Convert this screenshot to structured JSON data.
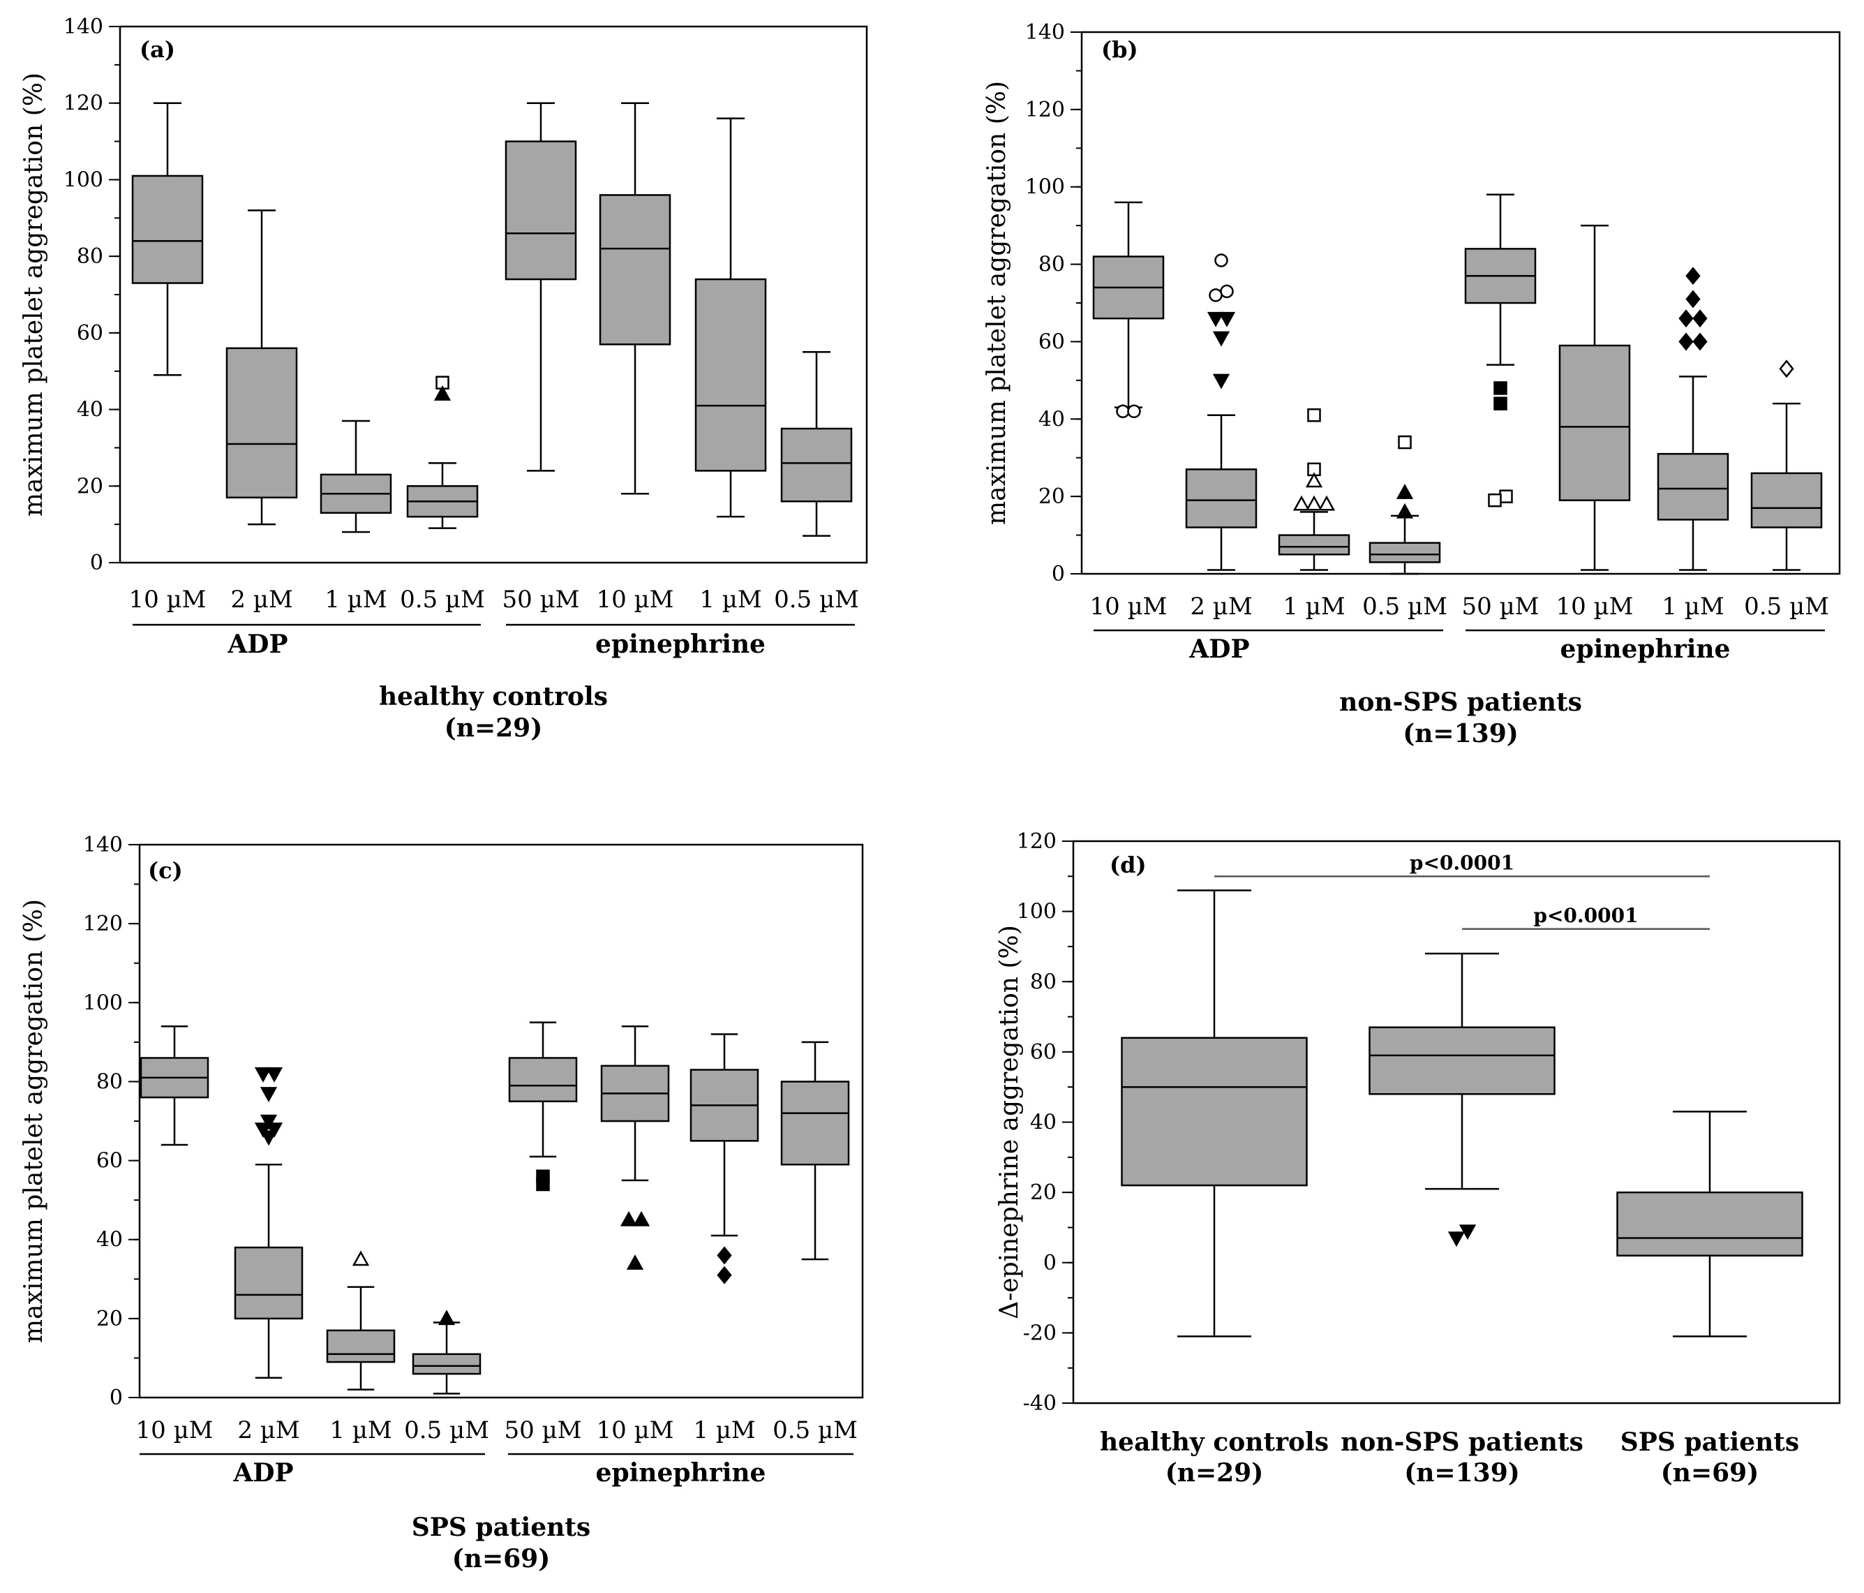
{
  "colors": {
    "box_fill": "#a6a6a6",
    "stroke": "#000000",
    "bracket": "#555555"
  },
  "chart_data": [
    {
      "id": "a",
      "type": "box",
      "panel_label": "(a)",
      "ylabel": "maximum platelet aggregation (%)",
      "ylim": [
        0,
        140
      ],
      "ymajor": [
        0,
        20,
        40,
        60,
        80,
        100,
        120,
        140
      ],
      "yminor_step": 10,
      "categories": [
        "10 µM",
        "2 µM",
        "1 µM",
        "0.5 µM",
        "50 µM",
        "10 µM",
        "1 µM",
        "0.5 µM"
      ],
      "groups": [
        {
          "label": "ADP",
          "start": 0,
          "end": 3
        },
        {
          "label": "epinephrine",
          "start": 4,
          "end": 7
        }
      ],
      "caption": [
        "healthy controls",
        "(n=29)"
      ],
      "boxes": [
        {
          "min": 49,
          "q1": 73,
          "median": 84,
          "q3": 101,
          "max": 120,
          "outliers": []
        },
        {
          "min": 10,
          "q1": 17,
          "median": 31,
          "q3": 56,
          "max": 92,
          "outliers": []
        },
        {
          "min": 8,
          "q1": 13,
          "median": 18,
          "q3": 23,
          "max": 37,
          "outliers": []
        },
        {
          "min": 9,
          "q1": 12,
          "median": 16,
          "q3": 20,
          "max": 26,
          "outliers": [
            {
              "y": 47,
              "marker": "square-open"
            },
            {
              "y": 44,
              "marker": "triangle-up"
            }
          ]
        },
        {
          "min": 24,
          "q1": 74,
          "median": 86,
          "q3": 110,
          "max": 120,
          "outliers": []
        },
        {
          "min": 18,
          "q1": 57,
          "median": 82,
          "q3": 96,
          "max": 120,
          "outliers": []
        },
        {
          "min": 12,
          "q1": 24,
          "median": 41,
          "q3": 74,
          "max": 116,
          "outliers": []
        },
        {
          "min": 7,
          "q1": 16,
          "median": 26,
          "q3": 35,
          "max": 55,
          "outliers": []
        }
      ]
    },
    {
      "id": "b",
      "type": "box",
      "panel_label": "(b)",
      "ylabel": "maximum platelet aggregation (%)",
      "ylim": [
        0,
        140
      ],
      "ymajor": [
        0,
        20,
        40,
        60,
        80,
        100,
        120,
        140
      ],
      "yminor_step": 10,
      "categories": [
        "10 µM",
        "2 µM",
        "1 µM",
        "0.5 µM",
        "50 µM",
        "10 µM",
        "1 µM",
        "0.5 µM"
      ],
      "groups": [
        {
          "label": "ADP",
          "start": 0,
          "end": 3
        },
        {
          "label": "epinephrine",
          "start": 4,
          "end": 7
        }
      ],
      "caption": [
        "non-SPS patients",
        "(n=139)"
      ],
      "boxes": [
        {
          "min": 43,
          "q1": 66,
          "median": 74,
          "q3": 82,
          "max": 96,
          "outliers": [
            {
              "y": 42,
              "dx": -8,
              "marker": "circle-open"
            },
            {
              "y": 42,
              "dx": 8,
              "marker": "circle-open"
            }
          ]
        },
        {
          "min": 1,
          "q1": 12,
          "median": 19,
          "q3": 27,
          "max": 41,
          "outliers": [
            {
              "y": 81,
              "marker": "circle-open"
            },
            {
              "y": 73,
              "dx": 8,
              "marker": "circle-open"
            },
            {
              "y": 72,
              "dx": -8,
              "marker": "circle-open"
            },
            {
              "y": 66,
              "dx": -8,
              "marker": "triangle-down"
            },
            {
              "y": 66,
              "dx": 8,
              "marker": "triangle-down"
            },
            {
              "y": 61,
              "marker": "triangle-down"
            },
            {
              "y": 50,
              "marker": "triangle-down"
            }
          ]
        },
        {
          "min": 1,
          "q1": 5,
          "median": 7,
          "q3": 10,
          "max": 16,
          "outliers": [
            {
              "y": 41,
              "marker": "square-open"
            },
            {
              "y": 27,
              "marker": "square-open"
            },
            {
              "y": 24,
              "marker": "triangle-up-open"
            },
            {
              "y": 18,
              "dx": -18,
              "marker": "triangle-up-open"
            },
            {
              "y": 18,
              "dx": 0,
              "marker": "triangle-up-open"
            },
            {
              "y": 18,
              "dx": 18,
              "marker": "triangle-up-open"
            }
          ]
        },
        {
          "min": 0,
          "q1": 3,
          "median": 5,
          "q3": 8,
          "max": 15,
          "outliers": [
            {
              "y": 34,
              "marker": "square-open"
            },
            {
              "y": 21,
              "marker": "triangle-up"
            },
            {
              "y": 16,
              "marker": "triangle-up"
            }
          ]
        },
        {
          "min": 54,
          "q1": 70,
          "median": 77,
          "q3": 84,
          "max": 98,
          "outliers": [
            {
              "y": 48,
              "marker": "square"
            },
            {
              "y": 44,
              "marker": "square"
            },
            {
              "y": 20,
              "dx": 8,
              "marker": "square-open"
            },
            {
              "y": 19,
              "dx": -8,
              "marker": "square-open"
            }
          ]
        },
        {
          "min": 1,
          "q1": 19,
          "median": 38,
          "q3": 59,
          "max": 90,
          "outliers": []
        },
        {
          "min": 1,
          "q1": 14,
          "median": 22,
          "q3": 31,
          "max": 51,
          "outliers": [
            {
              "y": 77,
              "marker": "diamond"
            },
            {
              "y": 71,
              "marker": "diamond"
            },
            {
              "y": 66,
              "dx": -10,
              "marker": "diamond"
            },
            {
              "y": 66,
              "dx": 10,
              "marker": "diamond"
            },
            {
              "y": 60,
              "dx": -10,
              "marker": "diamond"
            },
            {
              "y": 60,
              "dx": 10,
              "marker": "diamond"
            }
          ]
        },
        {
          "min": 1,
          "q1": 12,
          "median": 17,
          "q3": 26,
          "max": 44,
          "outliers": [
            {
              "y": 53,
              "marker": "diamond-open"
            }
          ]
        }
      ]
    },
    {
      "id": "c",
      "type": "box",
      "panel_label": "(c)",
      "ylabel": "maximum platelet aggregation (%)",
      "ylim": [
        0,
        140
      ],
      "ymajor": [
        0,
        20,
        40,
        60,
        80,
        100,
        120,
        140
      ],
      "yminor_step": 10,
      "categories": [
        "10 µM",
        "2 µM",
        "1 µM",
        "0.5 µM",
        "50 µM",
        "10 µM",
        "1 µM",
        "0.5 µM"
      ],
      "groups": [
        {
          "label": "ADP",
          "start": 0,
          "end": 3
        },
        {
          "label": "epinephrine",
          "start": 4,
          "end": 7
        }
      ],
      "caption": [
        "SPS patients",
        "(n=69)"
      ],
      "boxes": [
        {
          "min": 64,
          "q1": 76,
          "median": 81,
          "q3": 86,
          "max": 94,
          "outliers": []
        },
        {
          "min": 5,
          "q1": 20,
          "median": 26,
          "q3": 38,
          "max": 59,
          "outliers": [
            {
              "y": 82,
              "dx": -8,
              "marker": "triangle-down"
            },
            {
              "y": 82,
              "dx": 8,
              "marker": "triangle-down"
            },
            {
              "y": 77,
              "marker": "triangle-down"
            },
            {
              "y": 70,
              "marker": "triangle-down"
            },
            {
              "y": 68,
              "dx": -8,
              "marker": "triangle-down"
            },
            {
              "y": 68,
              "dx": 8,
              "marker": "triangle-down"
            },
            {
              "y": 66,
              "marker": "triangle-down"
            }
          ]
        },
        {
          "min": 2,
          "q1": 9,
          "median": 11,
          "q3": 17,
          "max": 28,
          "outliers": [
            {
              "y": 35,
              "marker": "triangle-up-open"
            }
          ]
        },
        {
          "min": 1,
          "q1": 6,
          "median": 8,
          "q3": 11,
          "max": 19,
          "outliers": [
            {
              "y": 20,
              "marker": "triangle-up"
            }
          ]
        },
        {
          "min": 61,
          "q1": 75,
          "median": 79,
          "q3": 86,
          "max": 95,
          "outliers": [
            {
              "y": 56,
              "marker": "square"
            },
            {
              "y": 54,
              "marker": "square"
            }
          ]
        },
        {
          "min": 55,
          "q1": 70,
          "median": 77,
          "q3": 84,
          "max": 94,
          "outliers": [
            {
              "y": 45,
              "dx": -9,
              "marker": "triangle-up"
            },
            {
              "y": 45,
              "dx": 9,
              "marker": "triangle-up"
            },
            {
              "y": 34,
              "marker": "triangle-up"
            }
          ]
        },
        {
          "min": 41,
          "q1": 65,
          "median": 74,
          "q3": 83,
          "max": 92,
          "outliers": [
            {
              "y": 36,
              "marker": "diamond"
            },
            {
              "y": 31,
              "marker": "diamond"
            }
          ]
        },
        {
          "min": 35,
          "q1": 59,
          "median": 72,
          "q3": 80,
          "max": 90,
          "outliers": []
        }
      ]
    },
    {
      "id": "d",
      "type": "box",
      "panel_label": "(d)",
      "ylabel": "Δ-epinephrine aggregation (%)",
      "ylim": [
        -40,
        120
      ],
      "ymajor": [
        -40,
        -20,
        0,
        20,
        40,
        60,
        80,
        100,
        120
      ],
      "yminor_step": 10,
      "categories": [
        "healthy controls",
        "non-SPS patients",
        "SPS patients"
      ],
      "category_sublabels": [
        "(n=29)",
        "(n=139)",
        "(n=69)"
      ],
      "boxes": [
        {
          "min": -21,
          "q1": 22,
          "median": 50,
          "q3": 64,
          "max": 106,
          "outliers": []
        },
        {
          "min": 21,
          "q1": 48,
          "median": 59,
          "q3": 67,
          "max": 88,
          "outliers": [
            {
              "y": 7,
              "dx": -8,
              "marker": "triangle-down"
            },
            {
              "y": 9,
              "dx": 8,
              "marker": "triangle-down"
            }
          ]
        },
        {
          "min": -21,
          "q1": 2,
          "median": 7,
          "q3": 20,
          "max": 43,
          "outliers": []
        }
      ],
      "brackets": [
        {
          "from": 0,
          "to": 2,
          "y": 110,
          "label": "p<0.0001"
        },
        {
          "from": 1,
          "to": 2,
          "y": 95,
          "label": "p<0.0001"
        }
      ]
    }
  ]
}
